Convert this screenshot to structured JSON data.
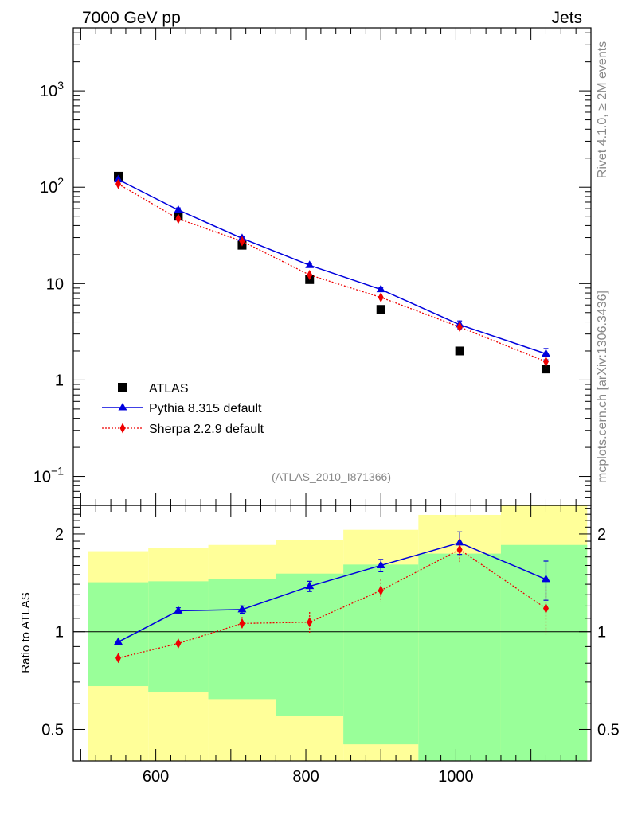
{
  "header": {
    "energy_label": "7000 GeV pp",
    "process_label": "Jets",
    "side_label_top": "Rivet 4.1.0, ≥ 2M events",
    "side_label_bottom": "mcplots.cern.ch [arXiv:1306.3436]",
    "analysis_id": "(ATLAS_2010_I871366)"
  },
  "colors": {
    "atlas": "#000000",
    "pythia": "#0000dd",
    "sherpa": "#ee0000",
    "band_inner": "#99ff99",
    "band_outer": "#ffff99",
    "watermark": "#888888"
  },
  "chart_data": [
    {
      "type": "line",
      "panel": "main",
      "yscale": "log",
      "xlim": [
        490,
        1180
      ],
      "ylim": [
        0.05,
        4500
      ],
      "xlabel": "",
      "ylabel": "",
      "yticks": [
        {
          "value": 0.1,
          "base": "10",
          "exp": "−1"
        },
        {
          "value": 1,
          "base": "1",
          "exp": ""
        },
        {
          "value": 10,
          "base": "10",
          "exp": ""
        },
        {
          "value": 100,
          "base": "10",
          "exp": "2"
        },
        {
          "value": 1000,
          "base": "10",
          "exp": "3"
        }
      ],
      "legend": {
        "position": "bottom-left",
        "entries": [
          "ATLAS",
          "Pythia 8.315 default",
          "Sherpa 2.2.9 default"
        ]
      },
      "series": [
        {
          "name": "ATLAS",
          "marker": "square",
          "x": [
            550,
            630,
            715,
            805,
            900,
            1005,
            1120
          ],
          "y": [
            130,
            50,
            25,
            11,
            5.4,
            2.0,
            1.3
          ]
        },
        {
          "name": "Pythia 8.315 default",
          "marker": "triangle",
          "line": "solid",
          "x": [
            550,
            630,
            715,
            805,
            900,
            1005,
            1120
          ],
          "y": [
            120,
            58,
            29.5,
            15.5,
            8.7,
            3.75,
            1.87
          ],
          "err": [
            0,
            3,
            1.2,
            0.6,
            0.4,
            0.35,
            0.25
          ]
        },
        {
          "name": "Sherpa 2.2.9 default",
          "marker": "diamond",
          "line": "dotted",
          "x": [
            550,
            630,
            715,
            805,
            900,
            1005,
            1120
          ],
          "y": [
            108,
            47,
            27.5,
            12.3,
            7.2,
            3.55,
            1.55
          ],
          "err": [
            0,
            2.5,
            1.5,
            0.9,
            0.6,
            0.4,
            0.25
          ]
        }
      ]
    },
    {
      "type": "line",
      "panel": "ratio",
      "yscale": "log",
      "xlim": [
        490,
        1180
      ],
      "ylim": [
        0.4,
        2.45
      ],
      "ylabel": "Ratio to ATLAS",
      "xticks": [
        600,
        800,
        1000
      ],
      "yticks": [
        {
          "value": 0.5,
          "label": "0.5"
        },
        {
          "value": 1,
          "label": "1"
        },
        {
          "value": 2,
          "label": "2"
        }
      ],
      "reference_line": 1,
      "bands": [
        {
          "x0": 510,
          "x1": 590,
          "inner": [
            0.68,
            1.42
          ],
          "outer": [
            0.34,
            1.77
          ]
        },
        {
          "x0": 590,
          "x1": 670,
          "inner": [
            0.65,
            1.43
          ],
          "outer": [
            0.34,
            1.81
          ]
        },
        {
          "x0": 670,
          "x1": 760,
          "inner": [
            0.62,
            1.45
          ],
          "outer": [
            0.34,
            1.85
          ]
        },
        {
          "x0": 760,
          "x1": 850,
          "inner": [
            0.55,
            1.51
          ],
          "outer": [
            0.34,
            1.92
          ]
        },
        {
          "x0": 850,
          "x1": 950,
          "inner": [
            0.45,
            1.61
          ],
          "outer": [
            0.34,
            2.06
          ]
        },
        {
          "x0": 950,
          "x1": 1060,
          "inner": [
            0.34,
            1.74
          ],
          "outer": [
            0.34,
            2.29
          ]
        },
        {
          "x0": 1060,
          "x1": 1175,
          "inner": [
            0.34,
            1.85
          ],
          "outer": [
            0.34,
            2.45
          ]
        }
      ],
      "series": [
        {
          "name": "Pythia 8.315 default",
          "marker": "triangle",
          "line": "solid",
          "x": [
            550,
            630,
            715,
            805,
            900,
            1005,
            1120
          ],
          "y": [
            0.93,
            1.16,
            1.17,
            1.38,
            1.6,
            1.88,
            1.45
          ],
          "err": [
            0,
            0.025,
            0.03,
            0.05,
            0.07,
            0.15,
            0.2
          ]
        },
        {
          "name": "Sherpa 2.2.9 default",
          "marker": "diamond",
          "line": "dotted",
          "x": [
            550,
            630,
            715,
            805,
            900,
            1005,
            1120
          ],
          "y": [
            0.83,
            0.92,
            1.06,
            1.07,
            1.34,
            1.79,
            1.18
          ],
          "err": [
            0,
            0.03,
            0.05,
            0.08,
            0.11,
            0.15,
            0.2
          ]
        }
      ]
    }
  ]
}
